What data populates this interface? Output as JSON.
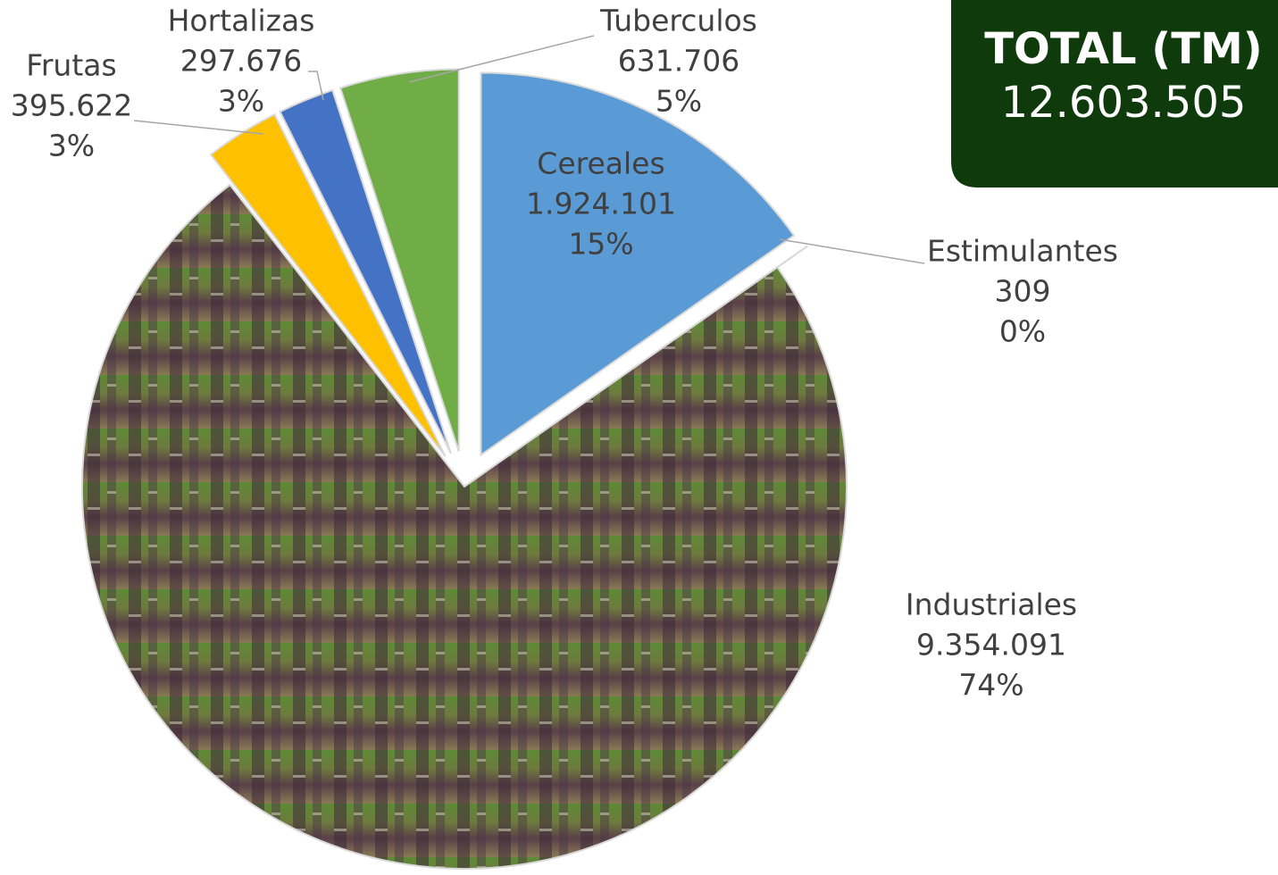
{
  "chart_data": {
    "type": "pie",
    "categories": [
      "Cereales",
      "Estimulantes",
      "Industriales",
      "Frutas",
      "Hortalizas",
      "Tuberculos"
    ],
    "values": [
      1924101,
      309,
      9354091,
      395622,
      297676,
      631706
    ],
    "value_labels": [
      "1.924.101",
      "309",
      "9.354.091",
      "395.622",
      "297.676",
      "631.706"
    ],
    "percent_labels": [
      "15%",
      "0%",
      "74%",
      "3%",
      "3%",
      "5%"
    ],
    "colors": [
      "#5b9bd5",
      "#a5a5a5",
      "#7a6a55",
      "#ffc000",
      "#4472c4",
      "#70ad47"
    ],
    "total": {
      "title": "TOTAL (TM)",
      "value": 12603505,
      "value_label": "12.603.505"
    }
  }
}
